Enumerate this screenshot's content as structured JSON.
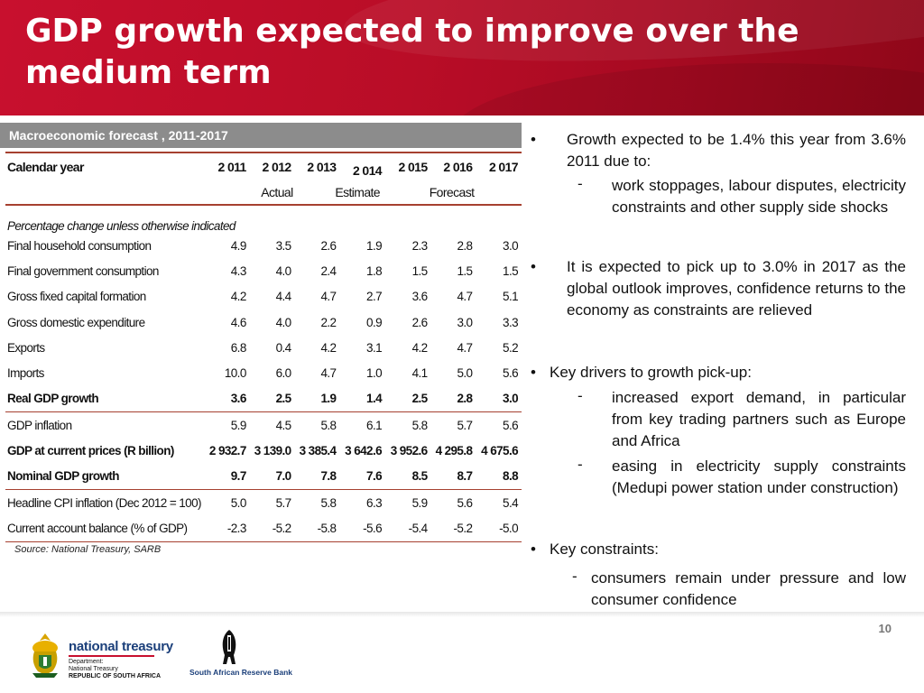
{
  "title": "GDP growth expected to improve over the medium term",
  "table": {
    "caption": "Macroeconomic forecast , 2011-2017",
    "header_label": "Calendar year",
    "years": [
      "2 011",
      "2 012",
      "2 013",
      "2 014",
      "2 015",
      "2 016",
      "2 017"
    ],
    "groups": {
      "actual": "Actual",
      "estimate": "Estimate",
      "forecast": "Forecast"
    },
    "note": "Percentage change unless otherwise indicated",
    "rows": [
      {
        "label": "Final household consumption",
        "values": [
          "4.9",
          "3.5",
          "2.6",
          "1.9",
          "2.3",
          "2.8",
          "3.0"
        ]
      },
      {
        "label": "Final government consumption",
        "values": [
          "4.3",
          "4.0",
          "2.4",
          "1.8",
          "1.5",
          "1.5",
          "1.5"
        ]
      },
      {
        "label": "Gross fixed capital formation",
        "values": [
          "4.2",
          "4.4",
          "4.7",
          "2.7",
          "3.6",
          "4.7",
          "5.1"
        ]
      },
      {
        "label": "Gross domestic expenditure",
        "values": [
          "4.6",
          "4.0",
          "2.2",
          "0.9",
          "2.6",
          "3.0",
          "3.3"
        ]
      },
      {
        "label": "Exports",
        "values": [
          "6.8",
          "0.4",
          "4.2",
          "3.1",
          "4.2",
          "4.7",
          "5.2"
        ]
      },
      {
        "label": "Imports",
        "values": [
          "10.0",
          "6.0",
          "4.7",
          "1.0",
          "4.1",
          "5.0",
          "5.6"
        ]
      },
      {
        "label": "Real GDP growth",
        "values": [
          "3.6",
          "2.5",
          "1.9",
          "1.4",
          "2.5",
          "2.8",
          "3.0"
        ]
      },
      {
        "label": "GDP inflation",
        "values": [
          "5.9",
          "4.5",
          "5.8",
          "6.1",
          "5.8",
          "5.7",
          "5.6"
        ]
      },
      {
        "label": "GDP at current prices (R billion)",
        "values": [
          "2 932.7",
          "3 139.0",
          "3 385.4",
          "3 642.6",
          "3 952.6",
          "4 295.8",
          "4 675.6"
        ]
      },
      {
        "label": "Nominal GDP growth",
        "values": [
          "9.7",
          "7.0",
          "7.8",
          "7.6",
          "8.5",
          "8.7",
          "8.8"
        ]
      },
      {
        "label": "Headline CPI inflation (Dec 2012 = 100)",
        "values": [
          "5.0",
          "5.7",
          "5.8",
          "6.3",
          "5.9",
          "5.6",
          "5.4"
        ]
      },
      {
        "label": "Current account balance (% of GDP)",
        "values": [
          "-2.3",
          "-5.2",
          "-5.8",
          "-5.6",
          "-5.4",
          "-5.2",
          "-5.0"
        ]
      }
    ],
    "source": "Source: National Treasury, SARB"
  },
  "bullets": {
    "b1": "Growth expected to be 1.4% this year from 3.6% 2011 due to:",
    "b1_sub1": "work stoppages, labour disputes, electricity constraints and other supply side shocks",
    "b2": "It is expected to pick up to 3.0% in 2017 as the global outlook improves, confidence returns to the economy as constraints are relieved",
    "b3": "Key drivers to growth pick-up:",
    "b3_sub1": "increased export demand, in particular from key trading partners such as Europe and Africa",
    "b3_sub2": "easing in electricity supply constraints (Medupi power station under construction)",
    "b4": "Key constraints:",
    "b4_sub1": "consumers remain under pressure and low consumer confidence",
    "bullet_char": "•",
    "dash_char": "-"
  },
  "footer": {
    "page_number": "10",
    "nt_name": "national treasury",
    "nt_dept": "Department:",
    "nt_dept2": "National Treasury",
    "nt_country": "REPUBLIC OF SOUTH AFRICA",
    "sarb_name": "South African Reserve Bank"
  }
}
